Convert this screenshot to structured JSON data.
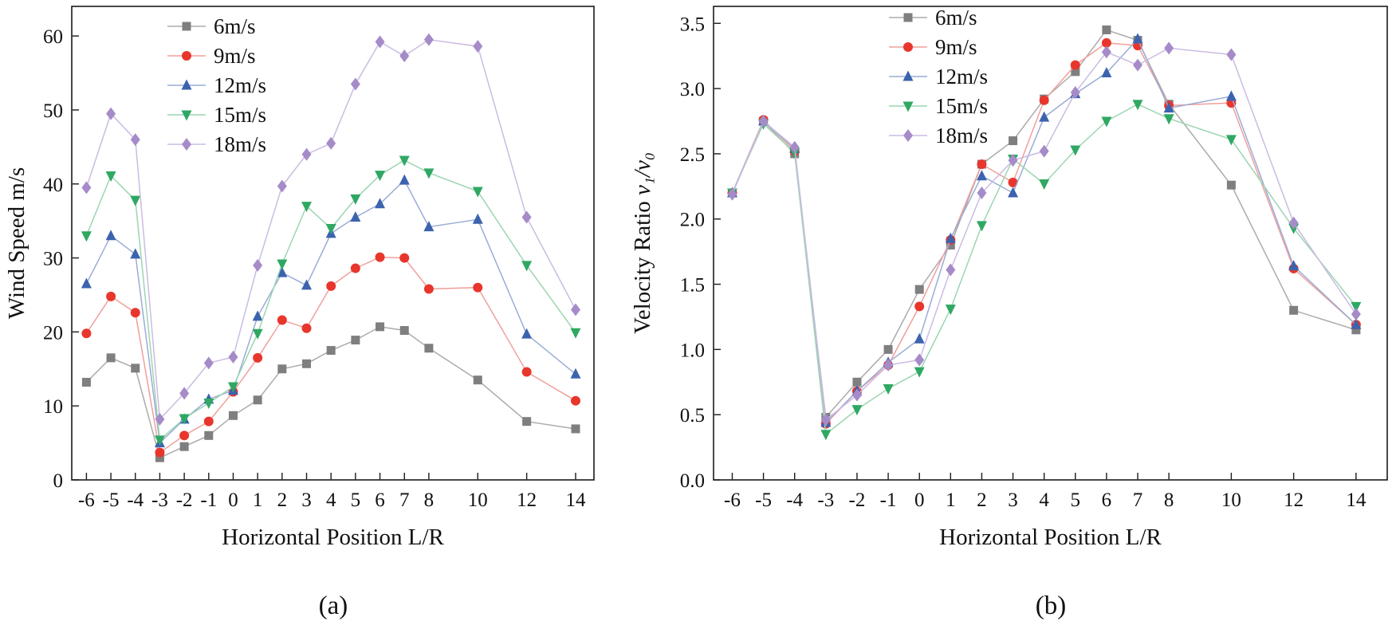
{
  "figure": {
    "background": "#ffffff",
    "frame_color": "#1a1a1a"
  },
  "series_meta": [
    {
      "name": "6m/s",
      "marker": "square",
      "color": "#7f7f7f",
      "line_color": "#ababab"
    },
    {
      "name": "9m/s",
      "marker": "circle",
      "color": "#e8362d",
      "line_color": "#f0a09a"
    },
    {
      "name": "12m/s",
      "marker": "triangle-up",
      "color": "#3c63ae",
      "line_color": "#9aacd6"
    },
    {
      "name": "15m/s",
      "marker": "triangle-down",
      "color": "#2fa863",
      "line_color": "#9cd5b1"
    },
    {
      "name": "18m/s",
      "marker": "diamond",
      "color": "#a68bc9",
      "line_color": "#cbbbe2"
    }
  ],
  "chart_data": [
    {
      "id": "a",
      "type": "line",
      "caption": "(a)",
      "xlabel": "Horizontal Position L/R",
      "ylabel": "Wind Speed m/s",
      "ylabel_parts": [
        {
          "text": "Wind Speed m/s",
          "italic": false
        }
      ],
      "legend_position": "top-left",
      "grid": false,
      "x": [
        -6,
        -5,
        -4,
        -3,
        -2,
        -1,
        0,
        1,
        2,
        3,
        4,
        5,
        6,
        7,
        8,
        10,
        12,
        14
      ],
      "xtick_labels": [
        "-6",
        "-5",
        "-4",
        "-3",
        "-2",
        "-1",
        "0",
        "1",
        "2",
        "3",
        "4",
        "5",
        "6",
        "7",
        "8",
        "10",
        "12",
        "14"
      ],
      "xlim": [
        -6.6,
        14.75
      ],
      "ylim": [
        0,
        64
      ],
      "ytick_values": [
        0,
        10,
        20,
        30,
        40,
        50,
        60
      ],
      "ytick_labels": [
        "0",
        "10",
        "20",
        "30",
        "40",
        "50",
        "60"
      ],
      "series": [
        {
          "name": "6m/s",
          "values": [
            13.2,
            16.5,
            15.1,
            3.0,
            4.5,
            6.0,
            8.7,
            10.8,
            15.0,
            15.7,
            17.5,
            18.9,
            20.7,
            20.2,
            17.8,
            13.5,
            7.9,
            6.9
          ]
        },
        {
          "name": "9m/s",
          "values": [
            19.8,
            24.8,
            22.6,
            3.7,
            6.0,
            7.9,
            11.9,
            16.5,
            21.6,
            20.5,
            26.2,
            28.6,
            30.1,
            30.0,
            25.8,
            26.0,
            14.6,
            10.7
          ]
        },
        {
          "name": "12m/s",
          "values": [
            26.5,
            33.0,
            30.5,
            5.0,
            8.2,
            10.9,
            12.1,
            22.1,
            28.0,
            26.3,
            33.3,
            35.5,
            37.3,
            40.5,
            34.2,
            35.2,
            19.7,
            14.3
          ]
        },
        {
          "name": "15m/s",
          "values": [
            33.0,
            41.1,
            37.8,
            5.4,
            8.3,
            10.4,
            12.6,
            19.8,
            29.2,
            37.0,
            34.0,
            38.0,
            41.2,
            43.2,
            41.5,
            39.0,
            29.0,
            19.9
          ]
        },
        {
          "name": "18m/s",
          "values": [
            39.5,
            49.5,
            46.0,
            8.2,
            11.7,
            15.8,
            16.6,
            29.0,
            39.7,
            44.0,
            45.5,
            53.5,
            59.2,
            57.3,
            59.5,
            58.6,
            35.5,
            23.0
          ]
        }
      ]
    },
    {
      "id": "b",
      "type": "line",
      "caption": "(b)",
      "xlabel": "Horizontal Position L/R",
      "ylabel": "Velocity Ratio v₁/v₀",
      "ylabel_parts": [
        {
          "text": "Velocity Ratio ",
          "italic": false
        },
        {
          "text": "v₁/v₀",
          "italic": true
        }
      ],
      "legend_position": "top-left",
      "grid": false,
      "x": [
        -6,
        -5,
        -4,
        -3,
        -2,
        -1,
        0,
        1,
        2,
        3,
        4,
        5,
        6,
        7,
        8,
        10,
        12,
        14
      ],
      "xtick_labels": [
        "-6",
        "-5",
        "-4",
        "-3",
        "-2",
        "-1",
        "0",
        "1",
        "2",
        "3",
        "4",
        "5",
        "6",
        "7",
        "8",
        "10",
        "12",
        "14"
      ],
      "xlim": [
        -6.6,
        15.0
      ],
      "ylim": [
        0,
        3.63
      ],
      "ytick_values": [
        0,
        0.5,
        1.0,
        1.5,
        2.0,
        2.5,
        3.0,
        3.5
      ],
      "ytick_labels": [
        "0.0",
        "0.5",
        "1.0",
        "1.5",
        "2.0",
        "2.5",
        "3.0",
        "3.5"
      ],
      "series": [
        {
          "name": "6m/s",
          "values": [
            2.2,
            2.75,
            2.5,
            0.48,
            0.75,
            1.0,
            1.46,
            1.8,
            2.42,
            2.6,
            2.92,
            3.13,
            3.45,
            3.37,
            2.88,
            2.26,
            1.3,
            1.15
          ]
        },
        {
          "name": "9m/s",
          "values": [
            2.2,
            2.76,
            2.52,
            0.43,
            0.68,
            0.88,
            1.33,
            1.84,
            2.42,
            2.28,
            2.91,
            3.18,
            3.35,
            3.33,
            2.87,
            2.89,
            1.62,
            1.19
          ]
        },
        {
          "name": "12m/s",
          "values": [
            2.2,
            2.75,
            2.54,
            0.44,
            0.68,
            0.9,
            1.08,
            1.85,
            2.33,
            2.2,
            2.78,
            2.96,
            3.12,
            3.38,
            2.85,
            2.94,
            1.64,
            1.19
          ]
        },
        {
          "name": "15m/s",
          "values": [
            2.2,
            2.73,
            2.51,
            0.35,
            0.54,
            0.7,
            0.83,
            1.31,
            1.95,
            2.46,
            2.27,
            2.53,
            2.75,
            2.88,
            2.77,
            2.61,
            1.93,
            1.33
          ]
        },
        {
          "name": "18m/s",
          "values": [
            2.19,
            2.75,
            2.55,
            0.46,
            0.65,
            0.88,
            0.92,
            1.61,
            2.2,
            2.45,
            2.52,
            2.97,
            3.28,
            3.18,
            3.31,
            3.26,
            1.97,
            1.27
          ]
        }
      ]
    }
  ]
}
